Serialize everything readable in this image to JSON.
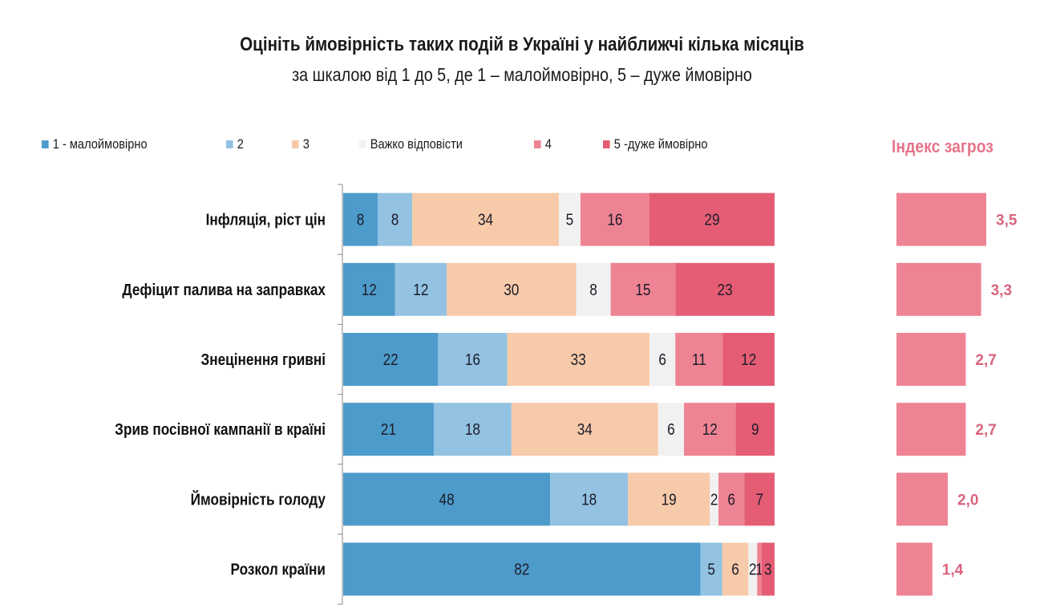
{
  "chart_data": {
    "type": "bar",
    "orientation": "horizontal",
    "stacked": true,
    "title": "Оцініть ймовірність таких подій в Україні у найближчі кілька місяців",
    "subtitle": "за шкалою від 1 до 5, де 1 – малоймовірно, 5 – дуже ймовірно",
    "xlabel": "",
    "ylabel": "",
    "xlim": [
      0,
      100
    ],
    "grid": false,
    "legend_position": "top-left",
    "categories": [
      "Інфляція, ріст цін",
      "Дефіцит палива на заправках",
      "Знецінення гривні",
      "Зрив посівної кампанії в країні",
      "Ймовірність голоду",
      "Розкол країни"
    ],
    "series": [
      {
        "name": "1 - малоймовірно",
        "color": "#4d9bcb",
        "values": [
          8,
          12,
          22,
          21,
          48,
          82
        ]
      },
      {
        "name": "2",
        "color": "#93c2e2",
        "values": [
          8,
          12,
          16,
          18,
          18,
          5
        ]
      },
      {
        "name": "3",
        "color": "#f7caa9",
        "values": [
          34,
          30,
          33,
          34,
          19,
          6
        ]
      },
      {
        "name": "Важко відповісти",
        "color": "#f1f1f1",
        "values": [
          5,
          8,
          6,
          6,
          2,
          2
        ]
      },
      {
        "name": "4",
        "color": "#ee8393",
        "values": [
          16,
          15,
          11,
          12,
          6,
          1
        ]
      },
      {
        "name": "5 -дуже ймовірно",
        "color": "#e55d74",
        "values": [
          29,
          23,
          12,
          9,
          7,
          3
        ]
      }
    ],
    "index": {
      "title": "Індекс загроз",
      "color": "#ee8393",
      "label_color": "#d9647c",
      "values": [
        3.5,
        3.3,
        2.7,
        2.7,
        2.0,
        1.4
      ],
      "labels": [
        "3,5",
        "3,3",
        "2,7",
        "2,7",
        "2,0",
        "1,4"
      ],
      "max": 3.5
    }
  }
}
